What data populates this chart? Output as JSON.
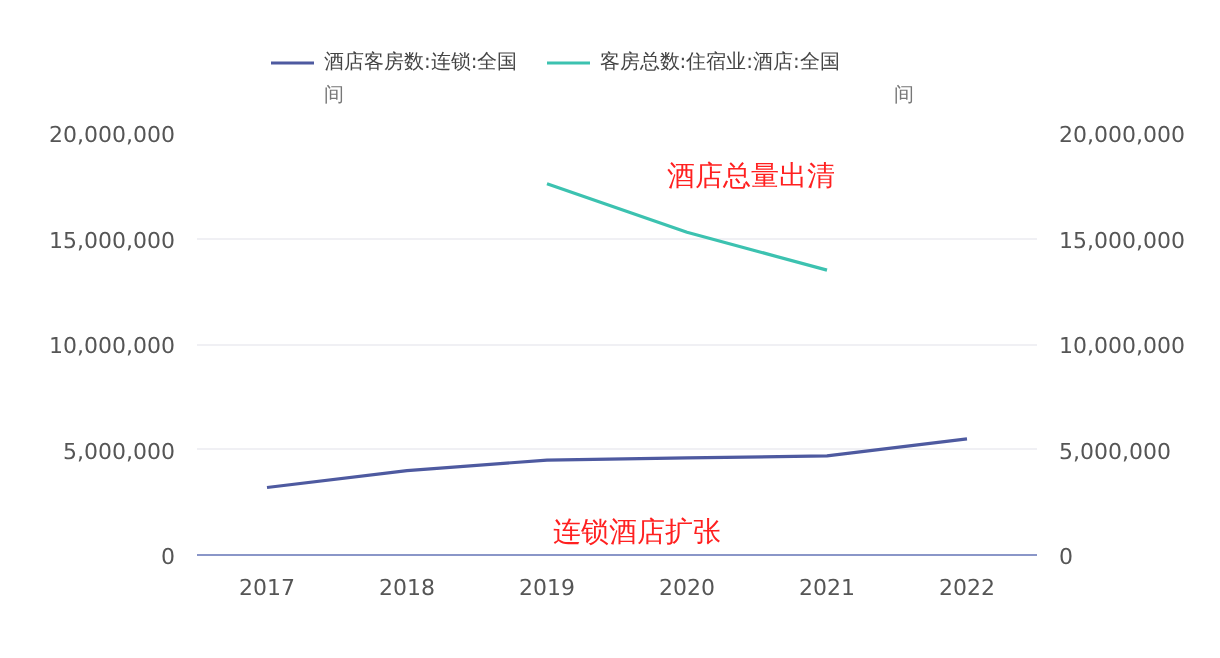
{
  "chart_data": {
    "type": "line",
    "categories": [
      "2017",
      "2018",
      "2019",
      "2020",
      "2021",
      "2022"
    ],
    "series": [
      {
        "name": "酒店客房数:连锁:全国",
        "color": "#4e5aa0",
        "values": [
          3200000,
          4000000,
          4500000,
          4600000,
          4700000,
          5500000
        ]
      },
      {
        "name": "客房总数:住宿业:酒店:全国",
        "color": "#3cc2b0",
        "values": [
          null,
          null,
          17600000,
          15300000,
          13500000,
          null
        ]
      }
    ],
    "ylabel": "间",
    "y2label": "间",
    "ylim": [
      0,
      20000000
    ],
    "yticks": [
      {
        "value": 0,
        "label": "0"
      },
      {
        "value": 5000000,
        "label": "5,000,000"
      },
      {
        "value": 10000000,
        "label": "10,000,000"
      },
      {
        "value": 15000000,
        "label": "15,000,000"
      },
      {
        "value": 20000000,
        "label": "20,000,000"
      }
    ],
    "y2lim": [
      0,
      20000000
    ],
    "y2ticks": [
      {
        "value": 0,
        "label": "0"
      },
      {
        "value": 5000000,
        "label": "5,000,000"
      },
      {
        "value": 10000000,
        "label": "10,000,000"
      },
      {
        "value": 15000000,
        "label": "15,000,000"
      },
      {
        "value": 20000000,
        "label": "20,000,000"
      }
    ],
    "annotations": [
      "酒店总量出清",
      "连锁酒店扩张"
    ],
    "grid": "y",
    "legend": "top left",
    "marker": "none",
    "line_style": "solid"
  }
}
